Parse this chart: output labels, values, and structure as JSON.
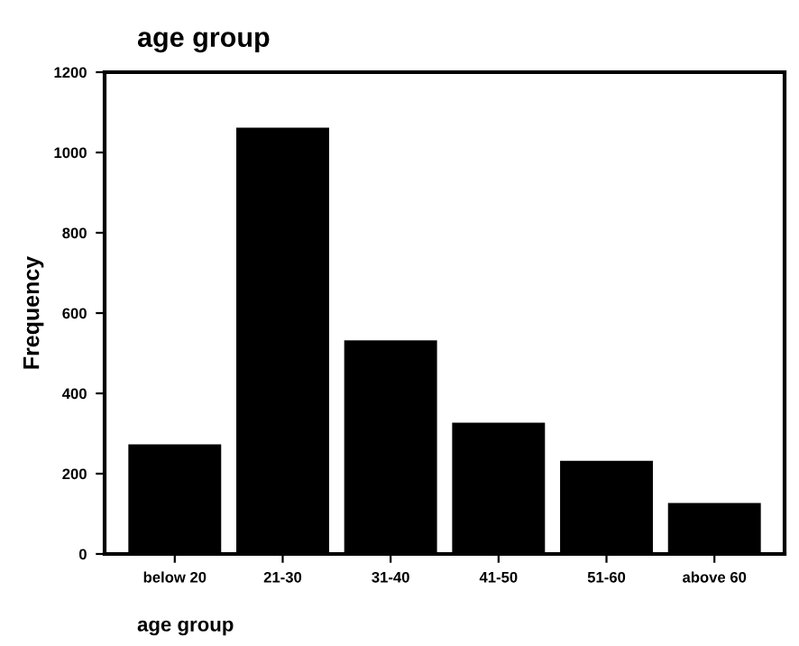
{
  "chart_data": {
    "type": "bar",
    "title": "age group",
    "xlabel": "age group",
    "ylabel": "Frequency",
    "categories": [
      "below 20",
      "21-30",
      "31-40",
      "41-50",
      "51-60",
      "above 60"
    ],
    "values": [
      273,
      1062,
      532,
      327,
      232,
      127
    ],
    "color": "#000000",
    "ylim": [
      0,
      1200
    ],
    "yticks": [
      0,
      200,
      400,
      600,
      800,
      1000,
      1200
    ],
    "grid": false,
    "legend": false
  }
}
